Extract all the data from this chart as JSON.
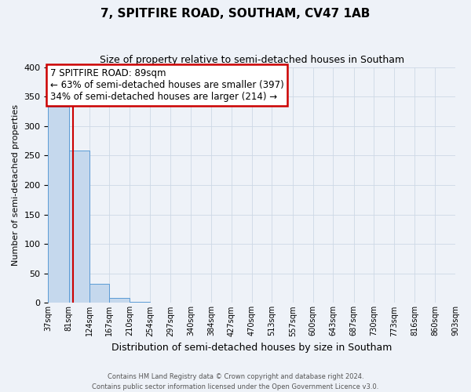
{
  "title": "7, SPITFIRE ROAD, SOUTHAM, CV47 1AB",
  "subtitle": "Size of property relative to semi-detached houses in Southam",
  "xlabel": "Distribution of semi-detached houses by size in Southam",
  "ylabel": "Number of semi-detached properties",
  "bin_labels": [
    "37sqm",
    "81sqm",
    "124sqm",
    "167sqm",
    "210sqm",
    "254sqm",
    "297sqm",
    "340sqm",
    "384sqm",
    "427sqm",
    "470sqm",
    "513sqm",
    "557sqm",
    "600sqm",
    "643sqm",
    "687sqm",
    "730sqm",
    "773sqm",
    "816sqm",
    "860sqm",
    "903sqm"
  ],
  "bin_edges": [
    37,
    81,
    124,
    167,
    210,
    254,
    297,
    340,
    384,
    427,
    470,
    513,
    557,
    600,
    643,
    687,
    730,
    773,
    816,
    860,
    903
  ],
  "bar_values": [
    333,
    258,
    32,
    8,
    2,
    1,
    0,
    0,
    0,
    0,
    0,
    0,
    0,
    0,
    0,
    0,
    0,
    0,
    0,
    0
  ],
  "bar_color": "#c5d8ed",
  "bar_edge_color": "#5b9bd5",
  "grid_color": "#cdd8e5",
  "background_color": "#eef2f8",
  "red_line_x": 89,
  "annotation_title": "7 SPITFIRE ROAD: 89sqm",
  "annotation_line1": "← 63% of semi-detached houses are smaller (397)",
  "annotation_line2": "34% of semi-detached houses are larger (214) →",
  "annotation_box_color": "#cc0000",
  "ylim": [
    0,
    400
  ],
  "yticks": [
    0,
    50,
    100,
    150,
    200,
    250,
    300,
    350,
    400
  ],
  "footer_line1": "Contains HM Land Registry data © Crown copyright and database right 2024.",
  "footer_line2": "Contains public sector information licensed under the Open Government Licence v3.0."
}
